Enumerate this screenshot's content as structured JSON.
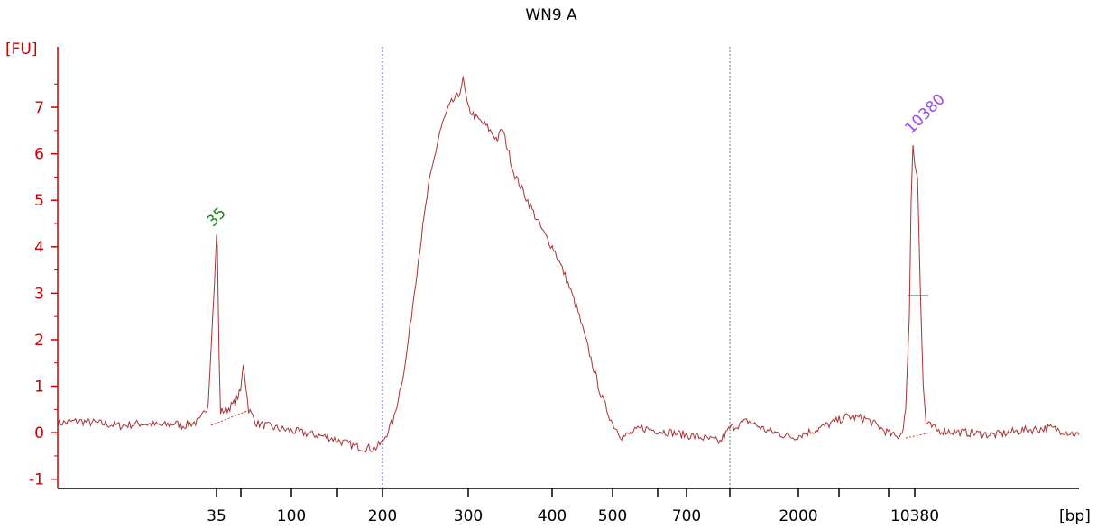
{
  "chart_data": {
    "type": "line",
    "title": "WN9 A",
    "ylabel": "[FU]",
    "xlabel": "[bp]",
    "ylim": [
      -1.2,
      8.3
    ],
    "yticks": [
      "-1",
      "0",
      "1",
      "2",
      "3",
      "4",
      "5",
      "6",
      "7"
    ],
    "xticks": [
      {
        "bp": "35",
        "label": "35"
      },
      {
        "bp": "50",
        "label": ""
      },
      {
        "bp": "100",
        "label": "100"
      },
      {
        "bp": "150",
        "label": ""
      },
      {
        "bp": "200",
        "label": "200"
      },
      {
        "bp": "300",
        "label": "300"
      },
      {
        "bp": "400",
        "label": "400"
      },
      {
        "bp": "500",
        "label": "500"
      },
      {
        "bp": "600",
        "label": ""
      },
      {
        "bp": "700",
        "label": "700"
      },
      {
        "bp": "1000",
        "label": ""
      },
      {
        "bp": "2000",
        "label": "2000"
      },
      {
        "bp": "3000",
        "label": ""
      },
      {
        "bp": "7000",
        "label": ""
      },
      {
        "bp": "10380",
        "label": "10380"
      }
    ],
    "region_markers": [
      "200",
      "1000"
    ],
    "peak_annotations": [
      {
        "label": "35",
        "bp": "35",
        "fu": 4.3,
        "color": "#1a8a1a"
      },
      {
        "label": "10380",
        "bp": "10380",
        "fu": 6.3,
        "color": "#9b4ee6"
      }
    ],
    "trace_points": [
      [
        0,
        0.2
      ],
      [
        0.05,
        0.25
      ],
      [
        0.1,
        0.2
      ],
      [
        0.15,
        0.15
      ],
      [
        0.2,
        0.2
      ],
      [
        0.25,
        0.15
      ],
      [
        0.28,
        0.2
      ],
      [
        0.3,
        0.15
      ],
      [
        0.34,
        0.25
      ],
      [
        0.36,
        0.6
      ],
      [
        0.375,
        3.2
      ],
      [
        0.38,
        4.25
      ],
      [
        0.383,
        4.0
      ],
      [
        0.39,
        1.5
      ],
      [
        0.395,
        0.45
      ],
      [
        0.42,
        0.5
      ],
      [
        0.45,
        0.65
      ],
      [
        0.47,
        0.9
      ],
      [
        0.48,
        1.5
      ],
      [
        0.49,
        1.0
      ],
      [
        0.5,
        0.5
      ],
      [
        0.53,
        0.2
      ],
      [
        0.6,
        0.1
      ],
      [
        0.7,
        0.0
      ],
      [
        0.8,
        -0.1
      ],
      [
        0.9,
        -0.3
      ],
      [
        0.97,
        -0.35
      ],
      [
        1.0,
        -0.2
      ],
      [
        1.05,
        0.3
      ],
      [
        1.1,
        1.5
      ],
      [
        1.15,
        3.5
      ],
      [
        1.2,
        5.3
      ],
      [
        1.25,
        6.5
      ],
      [
        1.28,
        6.9
      ],
      [
        1.3,
        7.1
      ],
      [
        1.33,
        7.25
      ],
      [
        1.35,
        7.6
      ],
      [
        1.37,
        7.0
      ],
      [
        1.4,
        6.8
      ],
      [
        1.45,
        6.6
      ],
      [
        1.5,
        6.3
      ],
      [
        1.52,
        6.55
      ],
      [
        1.55,
        6.0
      ],
      [
        1.57,
        5.6
      ],
      [
        1.6,
        5.3
      ],
      [
        1.65,
        4.8
      ],
      [
        1.7,
        4.3
      ],
      [
        1.75,
        3.9
      ],
      [
        1.8,
        3.3
      ],
      [
        1.85,
        2.6
      ],
      [
        1.9,
        1.7
      ],
      [
        1.95,
        0.8
      ],
      [
        2.0,
        0.2
      ],
      [
        2.05,
        -0.1
      ],
      [
        2.15,
        0.1
      ],
      [
        2.3,
        0.0
      ],
      [
        2.45,
        -0.1
      ],
      [
        2.55,
        -0.2
      ],
      [
        2.6,
        0.1
      ],
      [
        2.7,
        0.25
      ],
      [
        2.8,
        0.05
      ],
      [
        2.95,
        -0.1
      ],
      [
        3.1,
        0.1
      ],
      [
        3.25,
        0.35
      ],
      [
        3.35,
        0.3
      ],
      [
        3.45,
        0.05
      ],
      [
        3.52,
        -0.1
      ],
      [
        3.55,
        0.0
      ],
      [
        3.57,
        0.5
      ],
      [
        3.59,
        2.5
      ],
      [
        3.6,
        5.0
      ],
      [
        3.61,
        6.2
      ],
      [
        3.62,
        5.8
      ],
      [
        3.63,
        5.5
      ],
      [
        3.64,
        3.0
      ],
      [
        3.65,
        1.0
      ],
      [
        3.66,
        0.2
      ],
      [
        3.7,
        0.05
      ],
      [
        3.8,
        0.0
      ],
      [
        3.9,
        -0.05
      ],
      [
        4.0,
        0.05
      ],
      [
        4.1,
        0.1
      ],
      [
        4.2,
        -0.05
      ]
    ]
  }
}
